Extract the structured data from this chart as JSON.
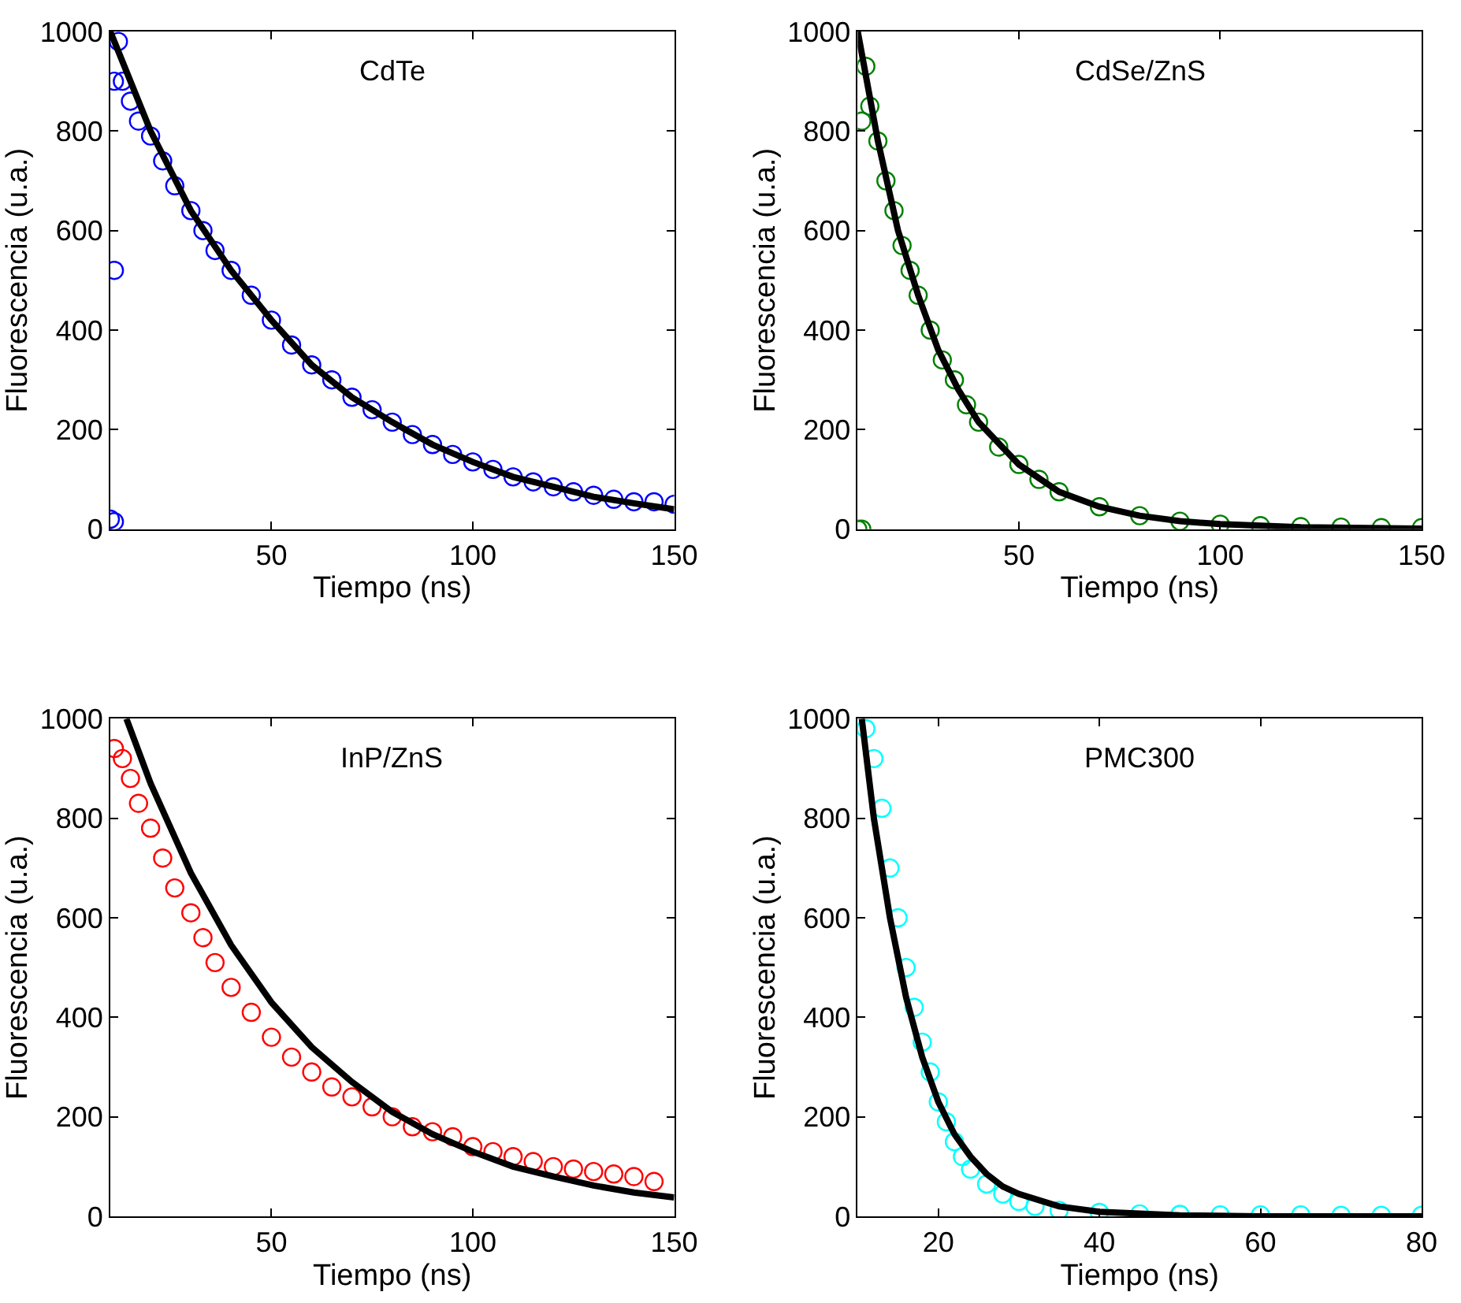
{
  "chart_data": [
    {
      "type": "scatter",
      "title": "CdTe",
      "xlabel": "Tiempo (ns)",
      "ylabel": "Fluorescencia (u.a.)",
      "xlim": [
        10,
        150
      ],
      "ylim": [
        0,
        1000
      ],
      "xticks": [
        50,
        100,
        150
      ],
      "yticks": [
        0,
        200,
        400,
        600,
        800,
        1000
      ],
      "series": [
        {
          "color": "#0000ff",
          "marker": "circle",
          "x": [
            10,
            11,
            11,
            11,
            12,
            13,
            15,
            17,
            20,
            23,
            26,
            30,
            33,
            36,
            40,
            45,
            50,
            55,
            60,
            65,
            70,
            75,
            80,
            85,
            90,
            95,
            100,
            105,
            110,
            115,
            120,
            125,
            130,
            135,
            140,
            145,
            150
          ],
          "values": [
            20,
            15,
            520,
            900,
            980,
            900,
            860,
            820,
            790,
            740,
            690,
            640,
            600,
            560,
            520,
            470,
            420,
            370,
            330,
            300,
            265,
            240,
            215,
            190,
            170,
            150,
            135,
            120,
            105,
            95,
            85,
            75,
            68,
            60,
            55,
            55,
            50
          ]
        },
        {
          "type": "line",
          "color": "#000000",
          "marker": "none",
          "line_style": "solid",
          "x": [
            10,
            20,
            30,
            40,
            50,
            60,
            70,
            80,
            90,
            100,
            110,
            120,
            130,
            140,
            150
          ],
          "values": [
            1000,
            800,
            640,
            520,
            420,
            330,
            265,
            215,
            170,
            135,
            105,
            85,
            65,
            52,
            40
          ]
        }
      ]
    },
    {
      "type": "scatter",
      "title": "CdSe/ZnS",
      "xlabel": "Tiempo (ns)",
      "ylabel": "Fluorescencia (u.a.)",
      "xlim": [
        10,
        150
      ],
      "ylim": [
        0,
        1000
      ],
      "xticks": [
        50,
        100,
        150
      ],
      "yticks": [
        0,
        200,
        400,
        600,
        800,
        1000
      ],
      "series": [
        {
          "color": "#008000",
          "marker": "circle",
          "x": [
            10,
            11,
            11,
            12,
            13,
            15,
            17,
            19,
            21,
            23,
            25,
            28,
            31,
            34,
            37,
            40,
            45,
            50,
            55,
            60,
            70,
            80,
            90,
            100,
            110,
            120,
            130,
            140,
            150
          ],
          "values": [
            0,
            0,
            820,
            930,
            850,
            780,
            700,
            640,
            570,
            520,
            470,
            400,
            340,
            300,
            250,
            215,
            165,
            130,
            100,
            75,
            45,
            27,
            16,
            10,
            7,
            5,
            4,
            3,
            3
          ]
        },
        {
          "type": "line",
          "color": "#000000",
          "marker": "none",
          "line_style": "solid",
          "x": [
            10,
            15,
            20,
            25,
            30,
            35,
            40,
            50,
            60,
            70,
            80,
            90,
            100,
            120,
            150
          ],
          "values": [
            1000,
            780,
            600,
            470,
            360,
            280,
            215,
            130,
            75,
            45,
            27,
            16,
            10,
            4,
            1
          ]
        }
      ]
    },
    {
      "type": "scatter",
      "title": "InP/ZnS",
      "xlabel": "Tiempo (ns)",
      "ylabel": "Fluorescencia (u.a.)",
      "xlim": [
        10,
        150
      ],
      "ylim": [
        0,
        1000
      ],
      "xticks": [
        50,
        100,
        150
      ],
      "yticks": [
        0,
        200,
        400,
        600,
        800,
        1000
      ],
      "series": [
        {
          "color": "#ff0000",
          "marker": "circle",
          "x": [
            11,
            13,
            15,
            17,
            20,
            23,
            26,
            30,
            33,
            36,
            40,
            45,
            50,
            55,
            60,
            65,
            70,
            75,
            80,
            85,
            90,
            95,
            100,
            105,
            110,
            115,
            120,
            125,
            130,
            135,
            140,
            145
          ],
          "values": [
            940,
            920,
            880,
            830,
            780,
            720,
            660,
            610,
            560,
            510,
            460,
            410,
            360,
            320,
            290,
            260,
            240,
            220,
            200,
            180,
            170,
            160,
            140,
            130,
            120,
            110,
            100,
            95,
            90,
            85,
            80,
            70
          ]
        },
        {
          "type": "line",
          "color": "#000000",
          "marker": "none",
          "line_style": "solid",
          "x": [
            14,
            20,
            30,
            40,
            50,
            60,
            70,
            80,
            90,
            100,
            110,
            120,
            130,
            140,
            150
          ],
          "values": [
            1000,
            870,
            690,
            545,
            430,
            340,
            270,
            210,
            165,
            130,
            100,
            80,
            62,
            48,
            38
          ]
        }
      ]
    },
    {
      "type": "scatter",
      "title": "PMC300",
      "xlabel": "Tiempo (ns)",
      "ylabel": "Fluorescencia (u.a.)",
      "xlim": [
        10,
        80
      ],
      "ylim": [
        0,
        1000
      ],
      "xticks": [
        20,
        40,
        60,
        80
      ],
      "yticks": [
        0,
        200,
        400,
        600,
        800,
        1000
      ],
      "series": [
        {
          "color": "#00ffff",
          "marker": "circle",
          "x": [
            11,
            12,
            13,
            14,
            15,
            16,
            17,
            18,
            19,
            20,
            21,
            22,
            23,
            24,
            26,
            28,
            30,
            32,
            35,
            40,
            45,
            50,
            55,
            60,
            65,
            70,
            75,
            80
          ],
          "values": [
            980,
            920,
            820,
            700,
            600,
            500,
            420,
            350,
            290,
            230,
            190,
            150,
            120,
            95,
            65,
            45,
            30,
            20,
            12,
            8,
            5,
            4,
            3,
            3,
            3,
            2,
            2,
            2
          ]
        },
        {
          "type": "line",
          "color": "#000000",
          "marker": "none",
          "line_style": "solid",
          "x": [
            10.5,
            12,
            14,
            16,
            18,
            20,
            22,
            24,
            26,
            28,
            30,
            35,
            40,
            50,
            60,
            80
          ],
          "values": [
            1000,
            800,
            600,
            440,
            320,
            230,
            165,
            120,
            85,
            60,
            45,
            20,
            9,
            2,
            0,
            0
          ]
        }
      ]
    }
  ]
}
